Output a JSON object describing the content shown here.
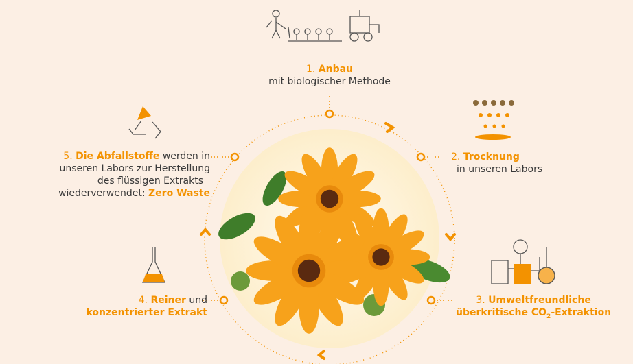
{
  "steps": [
    {
      "lines": [
        [
          "1.",
          "Anbau"
        ],
        [
          "mit biologischer Methode"
        ]
      ]
    },
    {
      "lines": [
        [
          "2.",
          "Trocknung"
        ],
        [
          "in unseren Labors"
        ]
      ]
    },
    {
      "lines": [
        [
          "3.",
          "Umweltfreundliche"
        ],
        [
          "überkritische CO",
          "2",
          "-Extraktion"
        ]
      ]
    },
    {
      "lines": [
        [
          "4.",
          "Reiner",
          "und"
        ],
        [
          "konzentrierter Extrakt"
        ]
      ]
    },
    {
      "lines": [
        [
          "5.",
          "Die Abfallstoffe",
          "werden in"
        ],
        [
          "unseren Labors zur Herstellung"
        ],
        [
          "des flüssigen Extrakts"
        ],
        [
          "wiederverwendet:",
          "Zero Waste"
        ]
      ]
    }
  ]
}
